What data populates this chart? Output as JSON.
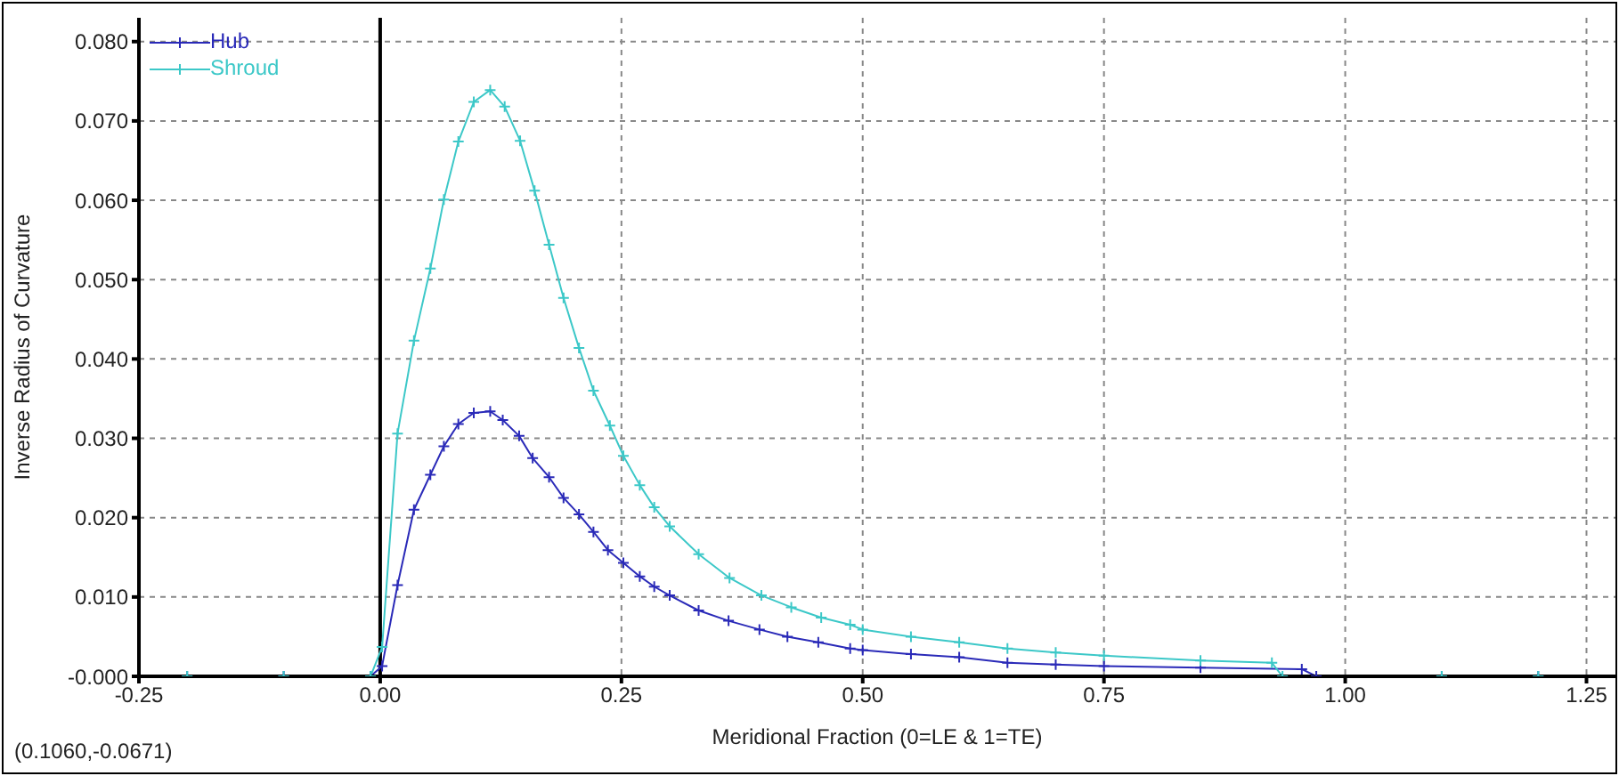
{
  "chart_data": {
    "type": "line",
    "xlabel": "Meridional Fraction (0=LE & 1=TE)",
    "ylabel": "Inverse Radius of Curvature",
    "xlim": [
      -0.25,
      1.28
    ],
    "ylim": [
      0,
      0.083
    ],
    "xticks": [
      {
        "value": -0.25,
        "label": "-0.25"
      },
      {
        "value": 0,
        "label": "0.00"
      },
      {
        "value": 0.25,
        "label": "0.25"
      },
      {
        "value": 0.5,
        "label": "0.50"
      },
      {
        "value": 0.75,
        "label": "0.75"
      },
      {
        "value": 1,
        "label": "1.00"
      },
      {
        "value": 1.25,
        "label": "1.25"
      }
    ],
    "yticks": [
      {
        "value": 0,
        "label": "-0.000"
      },
      {
        "value": 0.01,
        "label": "0.010"
      },
      {
        "value": 0.02,
        "label": "0.020"
      },
      {
        "value": 0.03,
        "label": "0.030"
      },
      {
        "value": 0.04,
        "label": "0.040"
      },
      {
        "value": 0.05,
        "label": "0.050"
      },
      {
        "value": 0.06,
        "label": "0.060"
      },
      {
        "value": 0.07,
        "label": "0.070"
      },
      {
        "value": 0.08,
        "label": "0.080"
      }
    ],
    "grid": true,
    "legend": "top left",
    "line_style": "solid",
    "ref_lines": [
      {
        "axis": "x",
        "value": 0,
        "color": "#000000"
      }
    ],
    "annotations": [
      "(0.1060,-0.0671)"
    ],
    "series": [
      {
        "name": "Hub",
        "color": "#2a2ab8",
        "marker": "cross",
        "x": [
          -0.2,
          -0.1,
          -0.01,
          0.002,
          0.018,
          0.035,
          0.052,
          0.066,
          0.081,
          0.097,
          0.114,
          0.127,
          0.144,
          0.158,
          0.175,
          0.19,
          0.206,
          0.221,
          0.236,
          0.252,
          0.269,
          0.284,
          0.3,
          0.33,
          0.361,
          0.393,
          0.422,
          0.454,
          0.487,
          0.5,
          0.55,
          0.6,
          0.65,
          0.7,
          0.75,
          0.85,
          0.955,
          0.97,
          1.1,
          1.2
        ],
        "values": [
          0,
          0,
          0,
          0.0013,
          0.0115,
          0.021,
          0.0254,
          0.029,
          0.0318,
          0.0332,
          0.0334,
          0.0323,
          0.0303,
          0.0275,
          0.0251,
          0.0225,
          0.0204,
          0.0182,
          0.0159,
          0.0143,
          0.0126,
          0.0113,
          0.0102,
          0.0083,
          0.007,
          0.0059,
          0.005,
          0.0043,
          0.0035,
          0.0033,
          0.0028,
          0.0024,
          0.0017,
          0.0015,
          0.0013,
          0.0011,
          0.0009,
          0,
          0,
          0
        ]
      },
      {
        "name": "Shroud",
        "color": "#3cc8c8",
        "marker": "cross",
        "x": [
          -0.2,
          -0.1,
          -0.01,
          0.002,
          0.018,
          0.035,
          0.052,
          0.066,
          0.081,
          0.097,
          0.114,
          0.129,
          0.145,
          0.16,
          0.175,
          0.19,
          0.206,
          0.221,
          0.238,
          0.252,
          0.269,
          0.284,
          0.3,
          0.33,
          0.362,
          0.395,
          0.426,
          0.457,
          0.487,
          0.5,
          0.55,
          0.6,
          0.65,
          0.7,
          0.75,
          0.85,
          0.924,
          0.935,
          1.1,
          1.2
        ],
        "values": [
          0,
          0,
          0,
          0.0037,
          0.0306,
          0.0423,
          0.0514,
          0.0601,
          0.0674,
          0.0724,
          0.0739,
          0.0718,
          0.0675,
          0.0612,
          0.0544,
          0.0477,
          0.0414,
          0.036,
          0.0316,
          0.0278,
          0.0241,
          0.0213,
          0.0189,
          0.0154,
          0.0124,
          0.0102,
          0.0087,
          0.0074,
          0.0065,
          0.0059,
          0.005,
          0.0043,
          0.0035,
          0.003,
          0.0026,
          0.002,
          0.0017,
          0,
          0,
          0
        ]
      }
    ]
  }
}
